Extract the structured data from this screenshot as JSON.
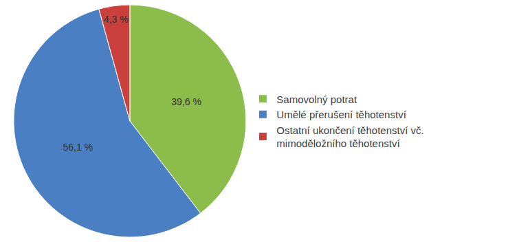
{
  "chart_data": {
    "type": "pie",
    "categories": [
      "Samovolný potrat",
      "Umělé přerušení těhotenství",
      "Ostatní ukončení těhotenství vč. mimoděložního těhotenství"
    ],
    "values": [
      39.6,
      56.1,
      4.3
    ],
    "value_labels": [
      "39,6 %",
      "56,1 %",
      "4,3 %"
    ],
    "colors": [
      "#8cbd4a",
      "#4a7fc4",
      "#c9403c"
    ],
    "data_labels": true,
    "legend": "right"
  }
}
